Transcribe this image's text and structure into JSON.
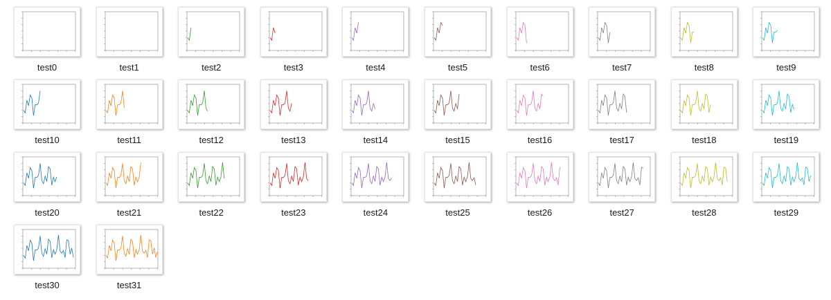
{
  "files": [
    "test0",
    "test1",
    "test2",
    "test3",
    "test4",
    "test5",
    "test6",
    "test7",
    "test8",
    "test9",
    "test10",
    "test11",
    "test12",
    "test13",
    "test14",
    "test15",
    "test16",
    "test17",
    "test18",
    "test19",
    "test20",
    "test21",
    "test22",
    "test23",
    "test24",
    "test25",
    "test26",
    "test27",
    "test28",
    "test29",
    "test30",
    "test31"
  ]
}
